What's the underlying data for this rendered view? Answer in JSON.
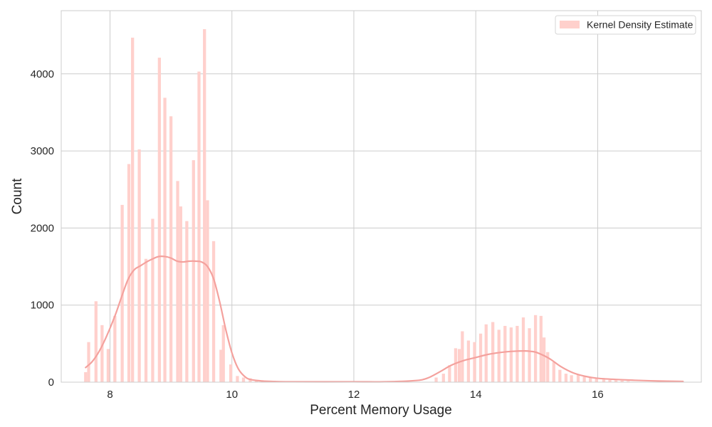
{
  "chart_data": {
    "type": "bar",
    "title": "",
    "xlabel": "Percent Memory Usage",
    "ylabel": "Count",
    "xlim": [
      7.2,
      17.7
    ],
    "ylim": [
      0,
      4820
    ],
    "x_ticks": [
      8,
      10,
      12,
      14,
      16
    ],
    "y_ticks": [
      0,
      1000,
      2000,
      3000,
      4000
    ],
    "grid": true,
    "legend": {
      "position": "top-right",
      "entries": [
        "Kernel Density Estimate"
      ]
    },
    "colors": {
      "bar": "#ffd0cc",
      "kde": "#f4a19d",
      "grid": "#cccccc",
      "frame": "#cccccc"
    },
    "series": [
      {
        "kind": "histogram",
        "bar_width": 0.05,
        "x": [
          7.6,
          7.65,
          7.77,
          7.87,
          7.97,
          8.08,
          8.2,
          8.31,
          8.37,
          8.48,
          8.59,
          8.7,
          8.81,
          8.9,
          9.0,
          9.11,
          9.16,
          9.26,
          9.37,
          9.46,
          9.55,
          9.6,
          9.7,
          9.82,
          9.86,
          9.98,
          10.09,
          10.19,
          10.3,
          10.4,
          10.5,
          13.35,
          13.47,
          13.57,
          13.67,
          13.73,
          13.78,
          13.88,
          13.98,
          14.08,
          14.17,
          14.28,
          14.38,
          14.48,
          14.58,
          14.68,
          14.78,
          14.88,
          14.98,
          15.07,
          15.12,
          15.18,
          15.28,
          15.38,
          15.48,
          15.57,
          15.68,
          15.78,
          15.88,
          15.98,
          16.1,
          16.2,
          16.3,
          16.4,
          16.5
        ],
        "values": [
          130,
          520,
          1050,
          740,
          430,
          860,
          2300,
          2830,
          4470,
          3020,
          1600,
          2120,
          4210,
          3690,
          3450,
          2610,
          2280,
          2090,
          2880,
          4030,
          4580,
          2360,
          1830,
          420,
          740,
          230,
          80,
          60,
          50,
          30,
          20,
          60,
          110,
          220,
          440,
          430,
          660,
          540,
          520,
          630,
          750,
          780,
          680,
          730,
          710,
          730,
          840,
          700,
          870,
          860,
          580,
          390,
          260,
          160,
          110,
          90,
          100,
          70,
          60,
          50,
          40,
          30,
          25,
          20,
          15
        ]
      },
      {
        "kind": "kde",
        "name": "Kernel Density Estimate",
        "x": [
          7.6,
          7.7,
          7.8,
          7.9,
          8.0,
          8.1,
          8.2,
          8.3,
          8.4,
          8.5,
          8.6,
          8.7,
          8.8,
          8.9,
          9.0,
          9.1,
          9.2,
          9.3,
          9.4,
          9.5,
          9.6,
          9.7,
          9.8,
          9.9,
          10.0,
          10.1,
          10.2,
          10.3,
          10.5,
          10.7,
          11.0,
          12.0,
          12.5,
          13.0,
          13.2,
          13.4,
          13.6,
          13.8,
          14.0,
          14.2,
          14.4,
          14.6,
          14.8,
          14.9,
          15.0,
          15.2,
          15.4,
          15.6,
          15.8,
          16.0,
          16.3,
          16.6,
          17.0,
          17.4
        ],
        "values": [
          190,
          260,
          370,
          520,
          700,
          900,
          1130,
          1340,
          1460,
          1510,
          1560,
          1600,
          1630,
          1630,
          1610,
          1570,
          1560,
          1570,
          1570,
          1560,
          1500,
          1340,
          1040,
          680,
          380,
          180,
          80,
          35,
          15,
          8,
          5,
          5,
          5,
          20,
          50,
          130,
          220,
          280,
          320,
          360,
          385,
          400,
          405,
          400,
          385,
          310,
          200,
          120,
          75,
          50,
          35,
          25,
          15,
          10
        ]
      }
    ]
  }
}
